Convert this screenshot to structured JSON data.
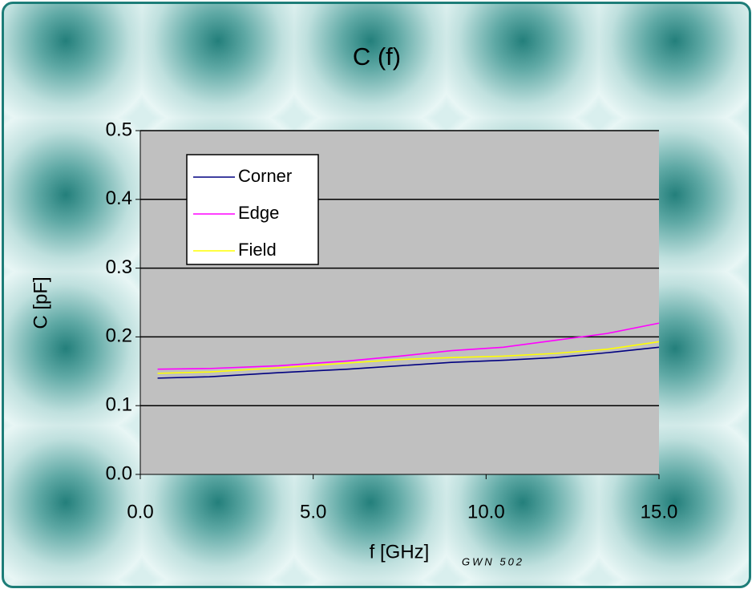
{
  "chart_data": {
    "type": "line",
    "title": "C (f)",
    "x_label": "f [GHz]",
    "y_label": "C [pF]",
    "footnote": "GWN 502",
    "x": [
      0.5,
      2,
      4,
      6,
      7.5,
      9,
      10.5,
      12,
      13.5,
      15
    ],
    "series": [
      {
        "name": "Corner",
        "color": "#000080",
        "values": [
          0.14,
          0.142,
          0.148,
          0.153,
          0.158,
          0.163,
          0.166,
          0.17,
          0.177,
          0.185
        ]
      },
      {
        "name": "Edge",
        "color": "#ff00ff",
        "values": [
          0.153,
          0.154,
          0.158,
          0.165,
          0.172,
          0.18,
          0.185,
          0.195,
          0.205,
          0.22
        ]
      },
      {
        "name": "Field",
        "color": "#ffff00",
        "values": [
          0.147,
          0.149,
          0.155,
          0.162,
          0.167,
          0.17,
          0.172,
          0.176,
          0.182,
          0.193
        ]
      }
    ],
    "xlim": [
      0,
      15
    ],
    "xticks": [
      {
        "value": 0,
        "label": "0.0"
      },
      {
        "value": 5,
        "label": "5.0"
      },
      {
        "value": 10,
        "label": "10.0"
      },
      {
        "value": 15,
        "label": "15.0"
      }
    ],
    "ylim": [
      0,
      0.5
    ],
    "yticks": [
      {
        "value": 0,
        "label": "0.0"
      },
      {
        "value": 0.1,
        "label": "0.1"
      },
      {
        "value": 0.2,
        "label": "0.2"
      },
      {
        "value": 0.3,
        "label": "0.3"
      },
      {
        "value": 0.4,
        "label": "0.4"
      },
      {
        "value": 0.5,
        "label": "0.5"
      }
    ],
    "grid": true,
    "legend": "upper-left"
  }
}
